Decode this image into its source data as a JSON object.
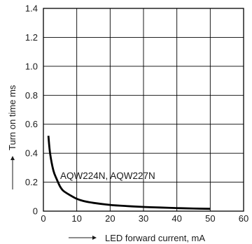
{
  "chart_data": {
    "type": "line",
    "title": "",
    "xlabel": "LED forward current, mA",
    "ylabel": "Turn on time ms",
    "xlim": [
      0,
      60
    ],
    "ylim": [
      0,
      1.4
    ],
    "xticks": [
      "0",
      "10",
      "20",
      "30",
      "40",
      "50",
      "60"
    ],
    "yticks": [
      "0",
      "0.2",
      "0.4",
      "0.6",
      "0.8",
      "1.0",
      "1.2",
      "1.4"
    ],
    "grid": true,
    "legend": "none",
    "annotation": "AQW224N, AQW227N",
    "series": [
      {
        "color": "#000000",
        "x": [
          1.5,
          2,
          3,
          4,
          5,
          6,
          8,
          10,
          12,
          15,
          20,
          25,
          30,
          35,
          40,
          45,
          50
        ],
        "y": [
          0.52,
          0.4,
          0.28,
          0.22,
          0.17,
          0.14,
          0.11,
          0.085,
          0.07,
          0.057,
          0.043,
          0.035,
          0.029,
          0.025,
          0.021,
          0.018,
          0.016
        ]
      }
    ]
  }
}
